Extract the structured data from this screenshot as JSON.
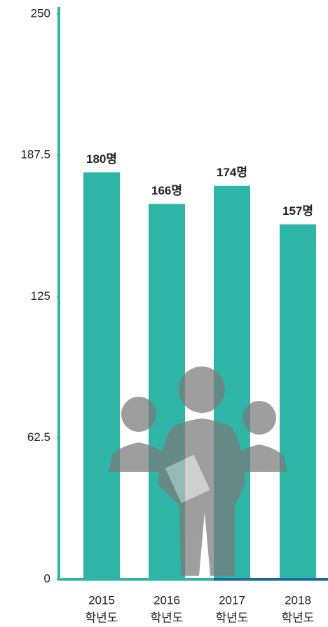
{
  "chart_data": {
    "type": "bar",
    "categories": [
      [
        "2015",
        "학년도"
      ],
      [
        "2016",
        "학년도"
      ],
      [
        "2017",
        "학년도"
      ],
      [
        "2018",
        "학년도"
      ]
    ],
    "values": [
      180,
      166,
      174,
      157
    ],
    "value_labels": [
      "180명",
      "166명",
      "174명",
      "157명"
    ],
    "color": "#2fb5a6",
    "ylim": [
      0,
      250
    ],
    "yticks": [
      0,
      62.5,
      125,
      187.5,
      250
    ],
    "grid": false
  }
}
